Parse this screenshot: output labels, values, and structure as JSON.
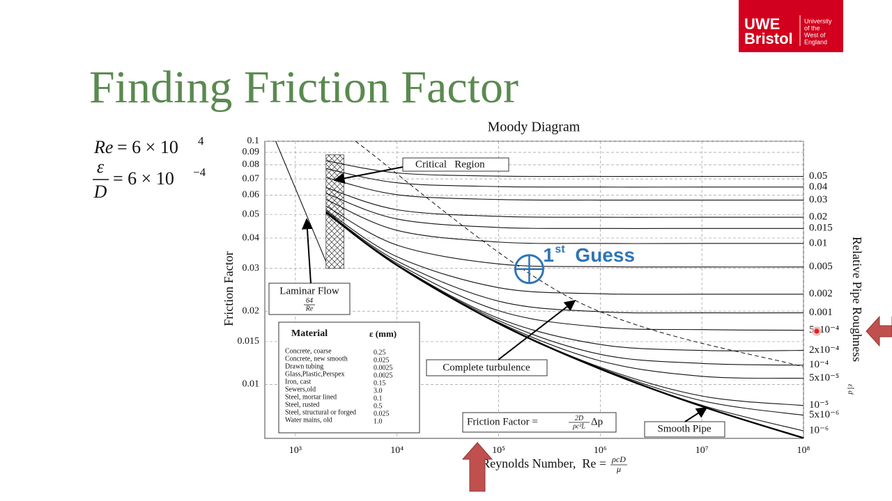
{
  "slide": {
    "title": "Finding Friction Factor",
    "logo": {
      "line1": "UWE",
      "line2": "Bristol",
      "small": [
        "University",
        "of the",
        "West of",
        "England"
      ]
    },
    "equations": [
      {
        "lhs": "Re",
        "rhs": "= 6 × 10",
        "exp": "4"
      },
      {
        "num": "ε",
        "den": "D",
        "rhs": "= 6 × 10",
        "exp": "−4"
      }
    ],
    "guess": {
      "number": "1",
      "suffix": "st",
      "word": "Guess",
      "x": 200000,
      "y": 0.0298
    }
  },
  "chart_data": {
    "type": "line",
    "title": "Moody Diagram",
    "xlabel": {
      "text": "Reynolds Number,  Re =",
      "num": "ρcD",
      "den": "μ"
    },
    "ylabel": "Friction Factor",
    "y2label": {
      "text": "Relative Pipe Roughness",
      "num": "ε",
      "den": "d"
    },
    "xscale": "log",
    "yscale": "log",
    "grid": true,
    "xlim": [
      500,
      100000000
    ],
    "ylim": [
      0.006,
      0.1
    ],
    "xticks": [
      {
        "value": 1000,
        "label": "10³"
      },
      {
        "value": 10000,
        "label": "10⁴"
      },
      {
        "value": 100000,
        "label": "10⁵"
      },
      {
        "value": 1000000,
        "label": "10⁶"
      },
      {
        "value": 10000000,
        "label": "10⁷"
      },
      {
        "value": 100000000,
        "label": "10⁸"
      }
    ],
    "yticks": [
      0.01,
      0.015,
      0.02,
      0.03,
      0.04,
      0.05,
      0.06,
      0.07,
      0.08,
      0.09,
      0.1
    ],
    "x": [
      2000,
      10000,
      100000,
      1000000,
      10000000,
      100000000
    ],
    "series": [
      {
        "name": "0.05",
        "color": "#111",
        "values": [
          0.0832,
          0.0741,
          0.0719,
          0.0717,
          0.0717,
          0.0717
        ]
      },
      {
        "name": "0.04",
        "color": "#111",
        "values": [
          0.0772,
          0.0675,
          0.0651,
          0.0648,
          0.0648,
          0.0648
        ]
      },
      {
        "name": "0.03",
        "color": "#111",
        "values": [
          0.071,
          0.0603,
          0.0576,
          0.0573,
          0.0573,
          0.0573
        ]
      },
      {
        "name": "0.02",
        "color": "#111",
        "values": [
          0.0645,
          0.0523,
          0.0491,
          0.0487,
          0.0487,
          0.0487
        ]
      },
      {
        "name": "0.015",
        "color": "#111",
        "values": [
          0.0611,
          0.0479,
          0.0442,
          0.0438,
          0.0438,
          0.0438
        ]
      },
      {
        "name": "0.01",
        "color": "#111",
        "values": [
          0.0577,
          0.043,
          0.0385,
          0.038,
          0.038,
          0.038
        ]
      },
      {
        "name": "0.005",
        "color": "#111",
        "values": [
          0.0542,
          0.0374,
          0.0313,
          0.0305,
          0.0304,
          0.0304
        ]
      },
      {
        "name": "0.002",
        "color": "#111",
        "values": [
          0.0521,
          0.0335,
          0.025,
          0.0236,
          0.0235,
          0.0235
        ]
      },
      {
        "name": "0.001",
        "color": "#111",
        "values": [
          0.0515,
          0.0322,
          0.022,
          0.0199,
          0.0197,
          0.0197
        ]
      },
      {
        "name": "5x10⁻⁴",
        "color": "#111",
        "values": [
          0.0512,
          0.0315,
          0.0201,
          0.0172,
          0.0168,
          0.0167
        ]
      },
      {
        "name": "2x10⁻⁴",
        "color": "#111",
        "values": [
          0.051,
          0.0311,
          0.0187,
          0.0146,
          0.0138,
          0.0138
        ]
      },
      {
        "name": "10⁻⁴",
        "color": "#111",
        "values": [
          0.051,
          0.031,
          0.0183,
          0.0133,
          0.0122,
          0.012
        ]
      },
      {
        "name": "5x10⁻⁵",
        "color": "#111",
        "values": [
          0.051,
          0.0309,
          0.018,
          0.0125,
          0.0108,
          0.0106
        ]
      },
      {
        "name": "10⁻⁵",
        "color": "#111",
        "values": [
          0.0509,
          0.0309,
          0.0179,
          0.01177,
          0.00896,
          0.00819
        ]
      },
      {
        "name": "5x10⁻⁶",
        "color": "#111",
        "values": [
          0.0509,
          0.0309,
          0.0178,
          0.01167,
          0.00857,
          0.00747
        ]
      },
      {
        "name": "10⁻⁶",
        "color": "#111",
        "values": [
          0.0509,
          0.0309,
          0.0178,
          0.0116,
          0.00821,
          0.00644
        ]
      }
    ],
    "smooth_pipe": {
      "name": "Smooth Pipe",
      "color": "#000",
      "values": [
        0.0509,
        0.0309,
        0.0178,
        0.01158,
        0.00813,
        0.00602
      ]
    },
    "laminar": {
      "name": "Laminar Flow",
      "num": "64",
      "den": "Re",
      "color": "#111",
      "x": [
        640,
        2000
      ],
      "values": [
        0.1,
        0.032
      ]
    },
    "turbulence_boundary": {
      "name": "Complete turbulence",
      "color": "#111",
      "x": [
        3900,
        560000,
        100000000
      ],
      "values": [
        0.1,
        0.0222,
        0.0118
      ]
    },
    "critical_region": {
      "name": "Critical   Region",
      "xlim": [
        2000,
        3000
      ],
      "ylim": [
        0.03,
        0.088
      ]
    },
    "formula": {
      "text": "Friction Factor =",
      "num": "2D",
      "den": "ρc²L",
      "tail": "Δp"
    },
    "materials": {
      "header": [
        "Material",
        "ε (mm)"
      ],
      "rows": [
        [
          "Concrete, coarse",
          "0.25"
        ],
        [
          "Concrete, new smooth",
          "0.025"
        ],
        [
          "Drawn tubing",
          "0.0025"
        ],
        [
          "Glass,Plastic,Perspex",
          "0.0025"
        ],
        [
          "Iron, cast",
          "0.15"
        ],
        [
          "Sewers,old",
          "3.0"
        ],
        [
          "Steel, mortar lined",
          "0.1"
        ],
        [
          "Steel, rusted",
          "0.5"
        ],
        [
          "Steel, structural or forged",
          "0.025"
        ],
        [
          "Water mains, old",
          "1.0"
        ]
      ]
    }
  }
}
